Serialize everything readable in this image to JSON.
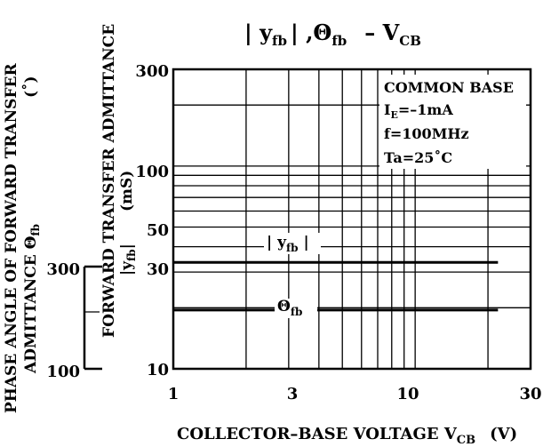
{
  "chart_data": {
    "type": "line",
    "title": {
      "p1": "| y",
      "p1sub": "fb",
      "p2": "| ,Θ",
      "p2sub": "fb",
      "p3": "– V",
      "p3sub": "CB"
    },
    "xlabel": {
      "main": "COLLECTOR–BASE VOLTAGE V",
      "sub": "CB",
      "unit": "(V)"
    },
    "ylabel_primary": {
      "line1": "FORWARD TRANSFER ADMITTANCE",
      "line2_pre": "|y",
      "line2_sub": "fb",
      "line2_post": "|",
      "unit": "(mS)"
    },
    "ylabel_secondary": {
      "line1": "PHASE ANGLE OF FORWARD TRANSFER",
      "line2_pre": "ADMITTANCE Θ",
      "line2_sub": "fb",
      "unit": "(˚)"
    },
    "x_scale": "log",
    "xlim": [
      1,
      30
    ],
    "x_ticks": [
      "1",
      "3",
      "10",
      "30"
    ],
    "y_scale": "log",
    "ylim": [
      10,
      300
    ],
    "y_ticks": [
      "300",
      "100",
      "50",
      "30",
      "10"
    ],
    "secondary_ticks": [
      "300",
      "100"
    ],
    "grid": true,
    "annotations": {
      "l1": "COMMON BASE",
      "l2_pre": "I",
      "l2_sub": "E",
      "l2_post": "=–1mA",
      "l3": "f=100MHz",
      "l4": "Ta=25˚C"
    },
    "series": [
      {
        "name": "|yfb|",
        "label_pre": "| y",
        "label_sub": "fb",
        "label_post": " |",
        "x": [
          1,
          22
        ],
        "y": [
          33.5,
          33.5
        ]
      },
      {
        "name": "Θfb",
        "label_pre": "Θ",
        "label_sub": "fb",
        "x": [
          1,
          22
        ],
        "y": [
          19.5,
          19.5
        ]
      }
    ]
  }
}
